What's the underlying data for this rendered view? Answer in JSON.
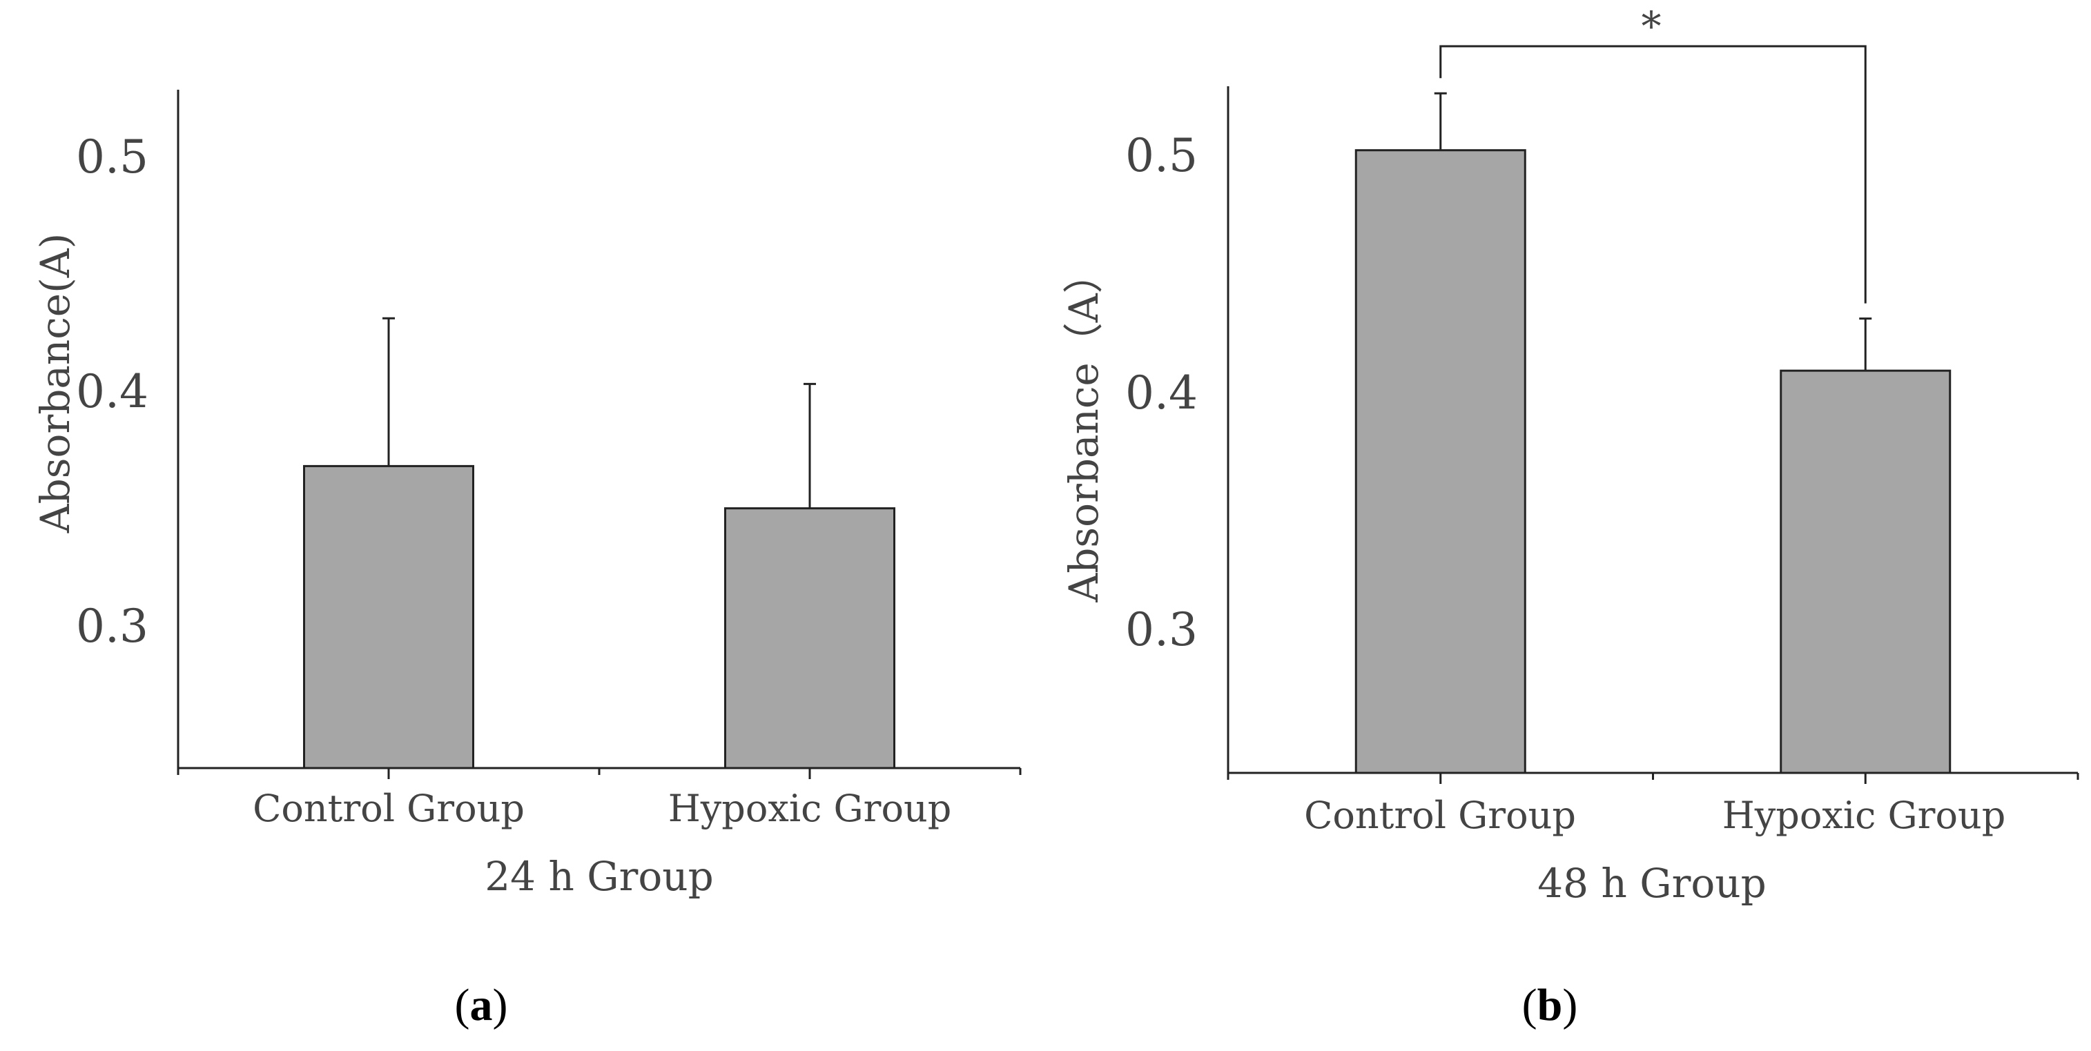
{
  "chart_data": [
    {
      "type": "bar",
      "panel_label": "a",
      "title": "",
      "xlabel": "24 h Group",
      "ylabel": "Absorbance(A)",
      "categories": [
        "Control Group",
        "Hypoxic Group"
      ],
      "values": [
        0.369,
        0.351
      ],
      "error_upper": [
        0.432,
        0.404
      ],
      "ylim": [
        0.24,
        0.53
      ],
      "yticks": [
        0.3,
        0.4,
        0.5
      ],
      "ytick_labels": [
        "0.3",
        "0.4",
        "0.5"
      ],
      "bar_color": "#a6a6a6",
      "significance": null
    },
    {
      "type": "bar",
      "panel_label": "b",
      "title": "",
      "xlabel": "48 h Group",
      "ylabel": "Absorbance（A）",
      "categories": [
        "Control Group",
        "Hypoxic Group"
      ],
      "values": [
        0.503,
        0.41
      ],
      "error_upper": [
        0.527,
        0.432
      ],
      "ylim": [
        0.24,
        0.53
      ],
      "yticks": [
        0.3,
        0.4,
        0.5
      ],
      "ytick_labels": [
        "0.3",
        "0.4",
        "0.5"
      ],
      "bar_color": "#a6a6a6",
      "significance": {
        "between": [
          0,
          1
        ],
        "label": "*"
      }
    }
  ]
}
